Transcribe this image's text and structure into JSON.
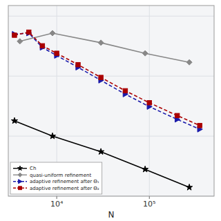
{
  "chart_data": {
    "type": "line",
    "xlabel": "N",
    "log": true,
    "grid": true,
    "legend": "lower left",
    "tick_labels": "x",
    "xlim": [
      3000,
      500000
    ],
    "ylim": [
      0.001,
      1.5
    ],
    "xticks": [
      {
        "value": 10000,
        "label": "10⁴"
      },
      {
        "value": 100000,
        "label": "10⁵"
      }
    ],
    "yticks": [
      0.001,
      0.01,
      0.1,
      1
    ],
    "series": [
      {
        "name": "Ch",
        "color": "#000000",
        "marker": "star",
        "line_style": "solid",
        "x": [
          3500,
          9000,
          30000,
          90000,
          270000
        ],
        "values": [
          0.018,
          0.01,
          0.0055,
          0.0028,
          0.0014
        ]
      },
      {
        "name": "quasi-uniform refinement",
        "color": "#888888",
        "marker": "diamond",
        "line_style": "solid",
        "x": [
          4000,
          9000,
          30000,
          90000,
          270000
        ],
        "values": [
          0.38,
          0.52,
          0.36,
          0.24,
          0.17
        ]
      },
      {
        "name": "adaptive refinement after Θ₁",
        "color": "#1a1aaa",
        "marker": "triangle-right",
        "line_style": "dashed",
        "x": [
          3500,
          5000,
          7000,
          10000,
          17000,
          30000,
          55000,
          100000,
          200000,
          350000
        ],
        "values": [
          0.5,
          0.52,
          0.3,
          0.22,
          0.14,
          0.085,
          0.05,
          0.031,
          0.019,
          0.013
        ]
      },
      {
        "name": "adaptive refinement after Θ₂",
        "color": "#aa0000",
        "marker": "square",
        "line_style": "dashed",
        "x": [
          3500,
          5000,
          7000,
          10000,
          17000,
          30000,
          55000,
          100000,
          200000,
          350000
        ],
        "values": [
          0.48,
          0.54,
          0.32,
          0.24,
          0.155,
          0.095,
          0.057,
          0.036,
          0.022,
          0.015
        ]
      }
    ]
  }
}
